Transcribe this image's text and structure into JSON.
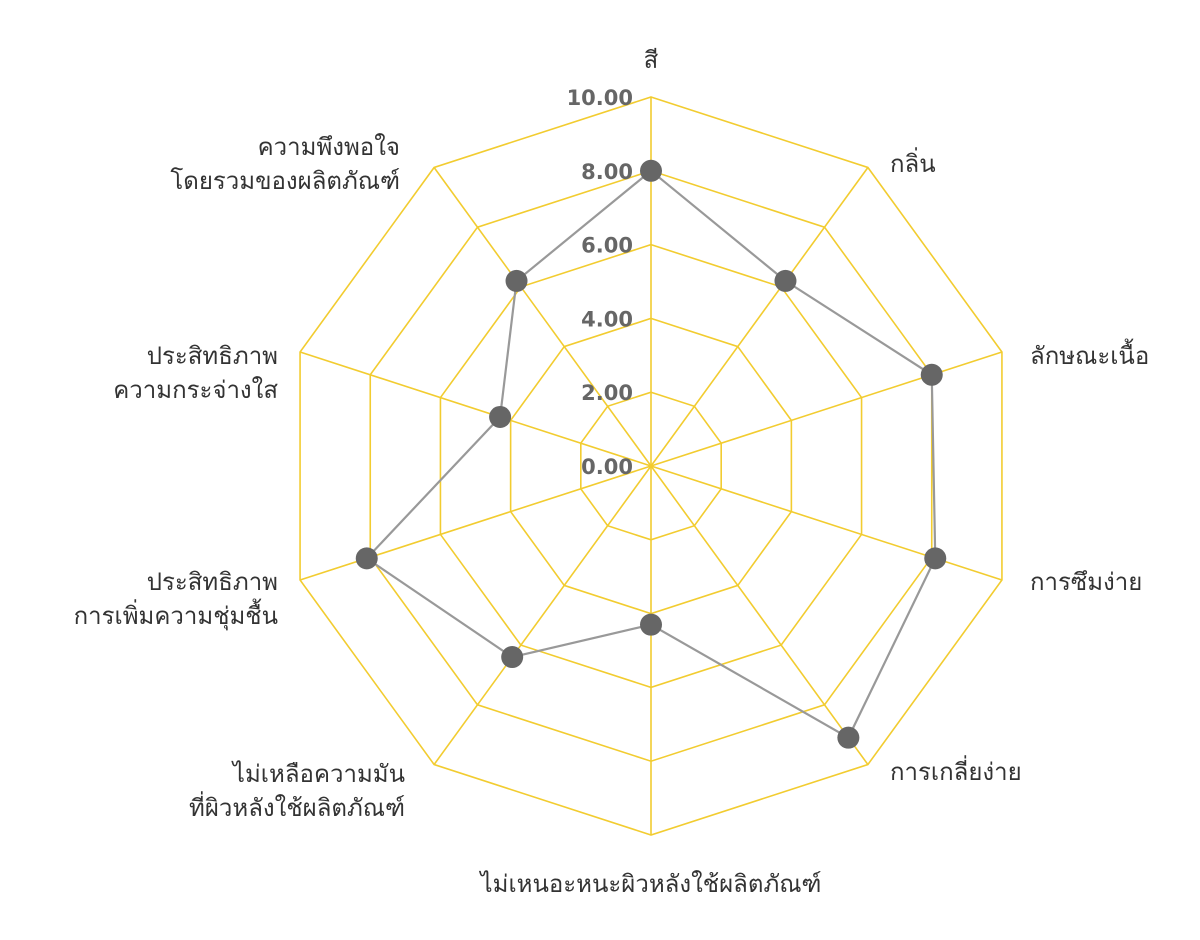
{
  "chart_data": {
    "type": "radar",
    "categories": [
      [
        "สี"
      ],
      [
        "กลิ่น"
      ],
      [
        "ลักษณะเนื้อ"
      ],
      [
        "การซึมง่าย"
      ],
      [
        "การเกลี่ยง่าย"
      ],
      [
        "ไม่เหนอะหนะผิวหลังใช้ผลิตภัณฑ์"
      ],
      [
        "ไม่เหลือความมัน",
        "ที่ผิวหลังใช้ผลิตภัณฑ์"
      ],
      [
        "ประสิทธิภาพ",
        "การเพิ่มความชุ่มชื้น"
      ],
      [
        "ประสิทธิภาพ",
        "ความกระจ่างใส"
      ],
      [
        "ความพึงพอใจ",
        "โดยรวมของผลิตภัณฑ์"
      ]
    ],
    "values": [
      8.0,
      6.2,
      8.0,
      8.1,
      9.1,
      4.3,
      6.4,
      8.1,
      4.3,
      6.2
    ],
    "rlim": [
      0,
      10
    ],
    "tick_labels": [
      "0.00",
      "2.00",
      "4.00",
      "6.00",
      "8.00",
      "10.00"
    ],
    "tick_values": [
      0,
      2,
      4,
      6,
      8,
      10
    ],
    "grid": true,
    "colors": {
      "grid": "#F2CC30",
      "line": "#999999",
      "marker": "#666666"
    }
  }
}
